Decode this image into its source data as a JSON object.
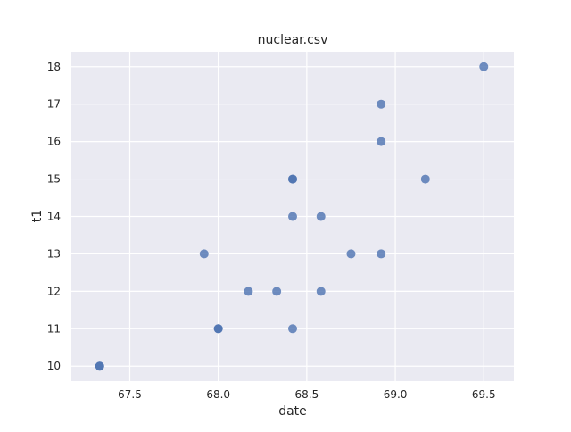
{
  "chart_data": {
    "type": "scatter",
    "title": "nuclear.csv",
    "xlabel": "date",
    "ylabel": "t1",
    "xlim": [
      67.17,
      69.67
    ],
    "ylim": [
      9.6,
      18.4
    ],
    "x_ticks": [
      67.5,
      68.0,
      68.5,
      69.0,
      69.5
    ],
    "x_tick_labels": [
      "67.5",
      "68.0",
      "68.5",
      "69.0",
      "69.5"
    ],
    "y_ticks": [
      10,
      11,
      12,
      13,
      14,
      15,
      16,
      17,
      18
    ],
    "y_tick_labels": [
      "10",
      "11",
      "12",
      "13",
      "14",
      "15",
      "16",
      "17",
      "18"
    ],
    "grid": true,
    "series": [
      {
        "color": "#4c72b0",
        "points": [
          {
            "x": 67.33,
            "y": 10
          },
          {
            "x": 67.33,
            "y": 10
          },
          {
            "x": 67.92,
            "y": 13
          },
          {
            "x": 68.0,
            "y": 11
          },
          {
            "x": 68.0,
            "y": 11
          },
          {
            "x": 68.17,
            "y": 12
          },
          {
            "x": 68.33,
            "y": 12
          },
          {
            "x": 68.42,
            "y": 15
          },
          {
            "x": 68.42,
            "y": 15
          },
          {
            "x": 68.42,
            "y": 14
          },
          {
            "x": 68.42,
            "y": 11
          },
          {
            "x": 68.58,
            "y": 14
          },
          {
            "x": 68.58,
            "y": 12
          },
          {
            "x": 68.75,
            "y": 13
          },
          {
            "x": 68.92,
            "y": 17
          },
          {
            "x": 68.92,
            "y": 16
          },
          {
            "x": 68.92,
            "y": 13
          },
          {
            "x": 69.17,
            "y": 15
          },
          {
            "x": 69.5,
            "y": 18
          }
        ]
      }
    ]
  },
  "colors": {
    "plot_background": "#eaeaf2",
    "grid": "#ffffff",
    "marker": "#4c72b0"
  }
}
